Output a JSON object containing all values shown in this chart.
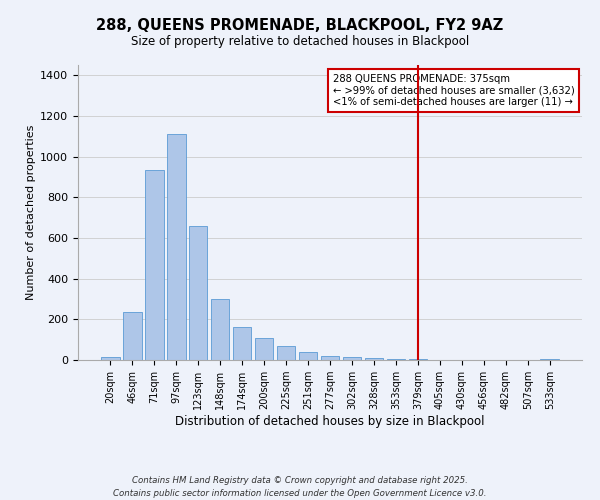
{
  "title": "288, QUEENS PROMENADE, BLACKPOOL, FY2 9AZ",
  "subtitle": "Size of property relative to detached houses in Blackpool",
  "xlabel": "Distribution of detached houses by size in Blackpool",
  "ylabel": "Number of detached properties",
  "bar_labels": [
    "20sqm",
    "46sqm",
    "71sqm",
    "97sqm",
    "123sqm",
    "148sqm",
    "174sqm",
    "200sqm",
    "225sqm",
    "251sqm",
    "277sqm",
    "302sqm",
    "328sqm",
    "353sqm",
    "379sqm",
    "405sqm",
    "430sqm",
    "456sqm",
    "482sqm",
    "507sqm",
    "533sqm"
  ],
  "bar_values": [
    15,
    235,
    935,
    1110,
    660,
    300,
    160,
    110,
    70,
    40,
    20,
    15,
    10,
    5,
    5,
    0,
    0,
    0,
    0,
    0,
    5
  ],
  "bar_color": "#aec6e8",
  "bar_edge_color": "#5b9bd5",
  "vline_index": 14,
  "vline_color": "#cc0000",
  "ylim": [
    0,
    1450
  ],
  "yticks": [
    0,
    200,
    400,
    600,
    800,
    1000,
    1200,
    1400
  ],
  "background_color": "#eef2fa",
  "grid_color": "#cccccc",
  "annotation_title": "288 QUEENS PROMENADE: 375sqm",
  "annotation_line1": "← >99% of detached houses are smaller (3,632)",
  "annotation_line2": "<1% of semi-detached houses are larger (11) →",
  "annotation_box_color": "#ffffff",
  "annotation_box_edge": "#cc0000",
  "footer_line1": "Contains HM Land Registry data © Crown copyright and database right 2025.",
  "footer_line2": "Contains public sector information licensed under the Open Government Licence v3.0."
}
